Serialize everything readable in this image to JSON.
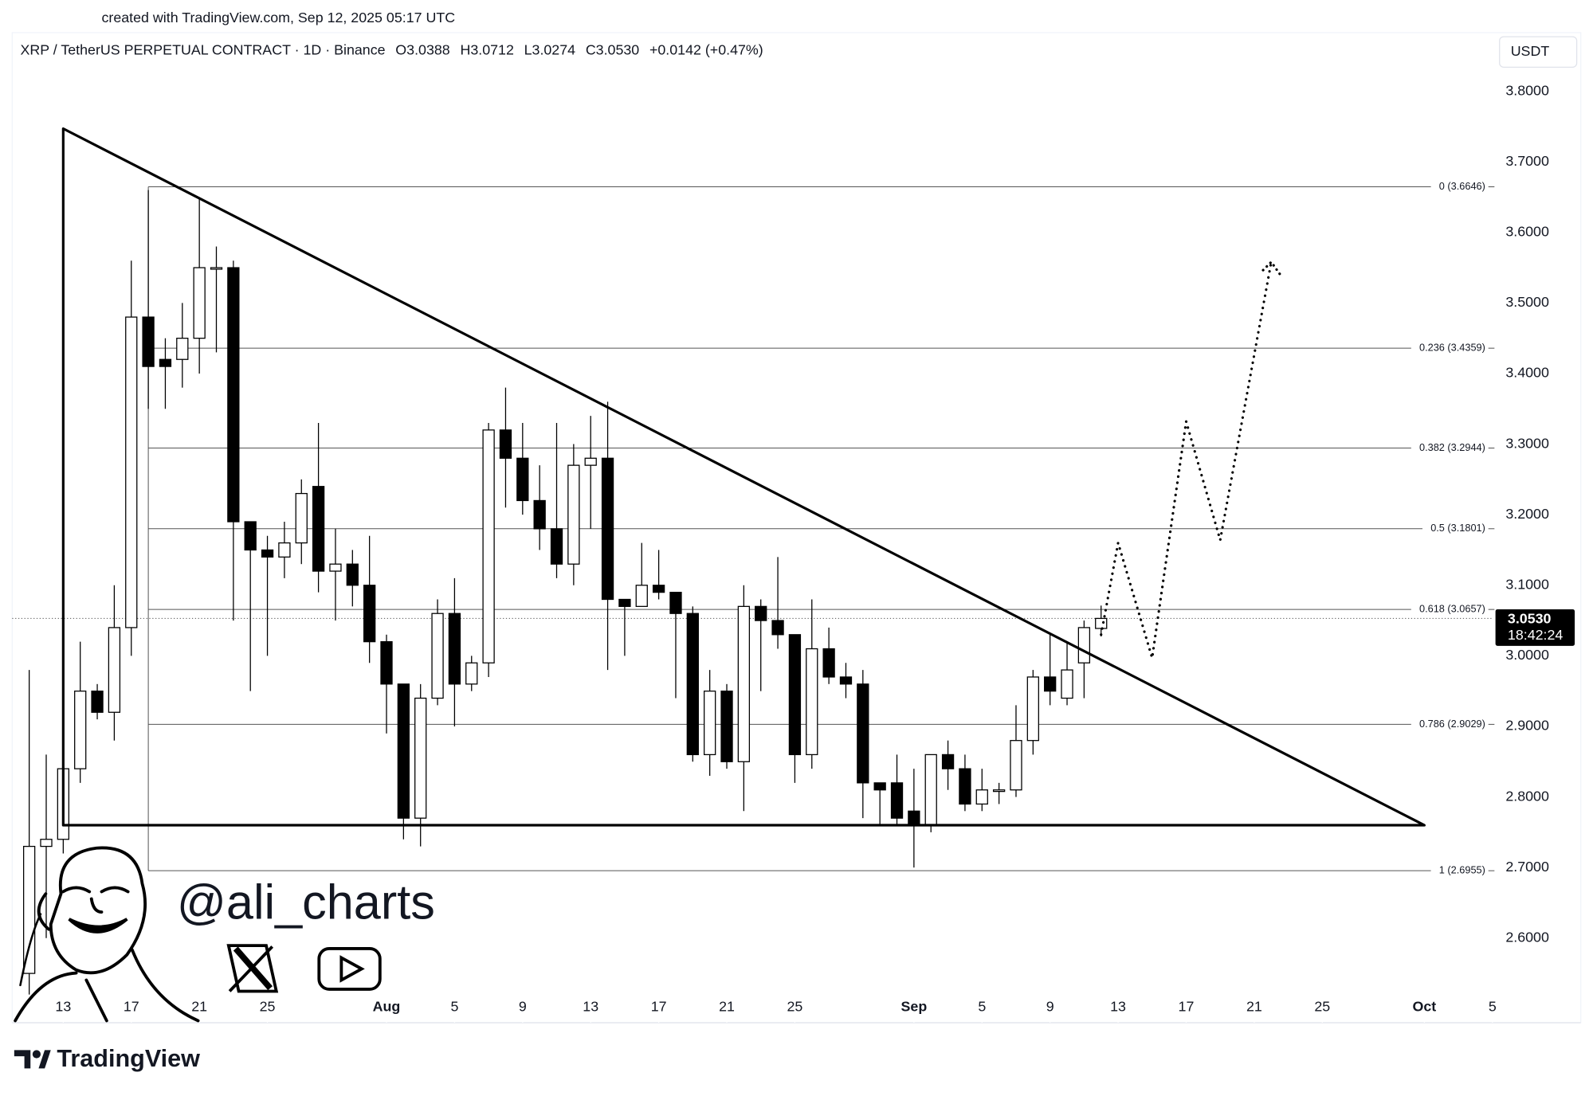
{
  "chart_data": {
    "type": "candlestick",
    "created_note": "created with TradingView.com, Sep 12, 2025 05:17 UTC",
    "symbol": "XRP / TetherUS PERPETUAL CONTRACT · 1D · Binance",
    "legend_ohlc": [
      "O3.0388",
      "H3.0712",
      "L3.0274",
      "C3.0530",
      "+0.0142 (+0.47%)"
    ],
    "currency": "USDT",
    "x": [
      "2025-07-11",
      "2025-07-12",
      "2025-07-13",
      "2025-07-14",
      "2025-07-15",
      "2025-07-16",
      "2025-07-17",
      "2025-07-18",
      "2025-07-19",
      "2025-07-20",
      "2025-07-21",
      "2025-07-22",
      "2025-07-23",
      "2025-07-24",
      "2025-07-25",
      "2025-07-26",
      "2025-07-27",
      "2025-07-28",
      "2025-07-29",
      "2025-07-30",
      "2025-07-31",
      "2025-08-01",
      "2025-08-02",
      "2025-08-03",
      "2025-08-04",
      "2025-08-05",
      "2025-08-06",
      "2025-08-07",
      "2025-08-08",
      "2025-08-09",
      "2025-08-10",
      "2025-08-11",
      "2025-08-12",
      "2025-08-13",
      "2025-08-14",
      "2025-08-15",
      "2025-08-16",
      "2025-08-17",
      "2025-08-18",
      "2025-08-19",
      "2025-08-20",
      "2025-08-21",
      "2025-08-22",
      "2025-08-23",
      "2025-08-24",
      "2025-08-25",
      "2025-08-26",
      "2025-08-27",
      "2025-08-28",
      "2025-08-29",
      "2025-08-30",
      "2025-08-31",
      "2025-09-01",
      "2025-09-02",
      "2025-09-03",
      "2025-09-04",
      "2025-09-05",
      "2025-09-06",
      "2025-09-07",
      "2025-09-08",
      "2025-09-09",
      "2025-09-10",
      "2025-09-11",
      "2025-09-12"
    ],
    "open": [
      2.55,
      2.73,
      2.74,
      2.84,
      2.95,
      2.92,
      3.04,
      3.48,
      3.42,
      3.42,
      3.45,
      3.55,
      3.55,
      3.19,
      3.15,
      3.14,
      3.16,
      3.24,
      3.12,
      3.13,
      3.1,
      3.02,
      2.96,
      2.77,
      2.94,
      3.06,
      2.96,
      2.99,
      3.32,
      3.28,
      3.22,
      3.18,
      3.13,
      3.27,
      3.28,
      3.08,
      3.07,
      3.1,
      3.09,
      3.06,
      2.86,
      2.95,
      2.85,
      3.07,
      3.05,
      3.03,
      2.86,
      3.01,
      2.97,
      2.96,
      2.82,
      2.82,
      2.78,
      2.76,
      2.86,
      2.84,
      2.79,
      2.81,
      2.81,
      2.88,
      2.97,
      2.94,
      2.99,
      3.0388
    ],
    "high": [
      2.98,
      2.86,
      2.87,
      3.02,
      2.96,
      3.1,
      3.56,
      3.66,
      3.45,
      3.5,
      3.65,
      3.58,
      3.56,
      3.19,
      3.17,
      3.19,
      3.25,
      3.33,
      3.18,
      3.15,
      3.17,
      3.03,
      2.96,
      2.96,
      3.08,
      3.11,
      3.0,
      3.33,
      3.38,
      3.33,
      3.27,
      3.33,
      3.3,
      3.34,
      3.36,
      3.08,
      3.16,
      3.15,
      3.09,
      3.07,
      2.98,
      2.96,
      3.1,
      3.08,
      3.14,
      3.03,
      3.08,
      3.04,
      2.99,
      2.98,
      2.82,
      2.86,
      2.84,
      2.86,
      2.88,
      2.86,
      2.84,
      2.82,
      2.93,
      2.98,
      3.03,
      3.02,
      3.05,
      3.0712
    ],
    "low": [
      2.52,
      2.6,
      2.72,
      2.82,
      2.91,
      2.88,
      3.0,
      3.35,
      3.35,
      3.38,
      3.4,
      3.43,
      3.05,
      2.95,
      3.0,
      3.11,
      3.13,
      3.09,
      3.05,
      3.07,
      2.99,
      2.89,
      2.74,
      2.73,
      2.93,
      2.9,
      2.95,
      2.97,
      3.21,
      3.2,
      3.15,
      3.11,
      3.1,
      3.18,
      2.98,
      3.0,
      3.07,
      3.08,
      2.94,
      2.85,
      2.83,
      2.84,
      2.78,
      2.95,
      3.01,
      2.82,
      2.84,
      2.96,
      2.94,
      2.77,
      2.76,
      2.76,
      2.7,
      2.75,
      2.81,
      2.78,
      2.78,
      2.79,
      2.8,
      2.86,
      2.93,
      2.93,
      2.94,
      3.0274
    ],
    "close": [
      2.73,
      2.74,
      2.84,
      2.95,
      2.92,
      3.04,
      3.48,
      3.41,
      3.41,
      3.45,
      3.55,
      3.55,
      3.19,
      3.15,
      3.14,
      3.16,
      3.23,
      3.12,
      3.13,
      3.1,
      3.02,
      2.96,
      2.77,
      2.94,
      3.06,
      2.96,
      2.99,
      3.32,
      3.28,
      3.22,
      3.18,
      3.13,
      3.27,
      3.28,
      3.08,
      3.07,
      3.1,
      3.09,
      3.06,
      2.86,
      2.95,
      2.85,
      3.07,
      3.05,
      3.03,
      2.86,
      3.01,
      2.97,
      2.96,
      2.82,
      2.81,
      2.77,
      2.76,
      2.86,
      2.84,
      2.79,
      2.81,
      2.81,
      2.88,
      2.97,
      2.95,
      2.98,
      3.04,
      3.053
    ],
    "up_color": "#ffffff",
    "down_color": "#000000",
    "xlim": [
      "2025-07-10",
      "2025-10-05"
    ],
    "xticks": [
      {
        "value": "2025-07-13",
        "label": "13"
      },
      {
        "value": "2025-07-17",
        "label": "17"
      },
      {
        "value": "2025-07-21",
        "label": "21"
      },
      {
        "value": "2025-07-25",
        "label": "25"
      },
      {
        "value": "2025-08-01",
        "label": "Aug"
      },
      {
        "value": "2025-08-05",
        "label": "5"
      },
      {
        "value": "2025-08-09",
        "label": "9"
      },
      {
        "value": "2025-08-13",
        "label": "13"
      },
      {
        "value": "2025-08-17",
        "label": "17"
      },
      {
        "value": "2025-08-21",
        "label": "21"
      },
      {
        "value": "2025-08-25",
        "label": "25"
      },
      {
        "value": "2025-09-01",
        "label": "Sep"
      },
      {
        "value": "2025-09-05",
        "label": "5"
      },
      {
        "value": "2025-09-09",
        "label": "9"
      },
      {
        "value": "2025-09-13",
        "label": "13"
      },
      {
        "value": "2025-09-17",
        "label": "17"
      },
      {
        "value": "2025-09-21",
        "label": "21"
      },
      {
        "value": "2025-09-25",
        "label": "25"
      },
      {
        "value": "2025-10-01",
        "label": "Oct"
      },
      {
        "value": "2025-10-05",
        "label": "5"
      }
    ],
    "ylim": [
      2.483,
      3.883
    ],
    "yticks": [
      {
        "value": 2.6,
        "label": "2.6000"
      },
      {
        "value": 2.7,
        "label": "2.7000"
      },
      {
        "value": 2.8,
        "label": "2.8000"
      },
      {
        "value": 2.9,
        "label": "2.9000"
      },
      {
        "value": 3.0,
        "label": "3.0000"
      },
      {
        "value": 3.1,
        "label": "3.1000"
      },
      {
        "value": 3.2,
        "label": "3.2000"
      },
      {
        "value": 3.3,
        "label": "3.3000"
      },
      {
        "value": 3.4,
        "label": "3.4000"
      },
      {
        "value": 3.5,
        "label": "3.5000"
      },
      {
        "value": 3.6,
        "label": "3.6000"
      },
      {
        "value": 3.7,
        "label": "3.7000"
      },
      {
        "value": 3.8,
        "label": "3.8000"
      }
    ],
    "last_price": {
      "value": 3.053,
      "label": "3.0530",
      "countdown": "18:42:24"
    },
    "fib_start": "2025-07-18",
    "fib_levels": [
      {
        "value": 3.6646,
        "label": "0 (3.6646)"
      },
      {
        "value": 3.4359,
        "label": "0.236 (3.4359)"
      },
      {
        "value": 3.2944,
        "label": "0.382 (3.2944)"
      },
      {
        "value": 3.1801,
        "label": "0.5 (3.1801)"
      },
      {
        "value": 3.0657,
        "label": "0.618 (3.0657)"
      },
      {
        "value": 2.9029,
        "label": "0.786 (2.9029)"
      },
      {
        "value": 2.6955,
        "label": "1 (2.6955)"
      }
    ],
    "triangle": [
      {
        "x": "2025-07-13",
        "y": 3.747
      },
      {
        "x": "2025-07-13",
        "y": 2.76
      },
      {
        "x": "2025-10-01",
        "y": 2.76
      }
    ],
    "projection": [
      {
        "x": "2025-09-12",
        "y": 3.03
      },
      {
        "x": "2025-09-13",
        "y": 3.16
      },
      {
        "x": "2025-09-15",
        "y": 2.997
      },
      {
        "x": "2025-09-17",
        "y": 3.332
      },
      {
        "x": "2025-09-19",
        "y": 3.164
      },
      {
        "x": "2025-09-22",
        "y": 3.558
      }
    ],
    "watermark": "@ali_charts",
    "brand": "TradingView"
  }
}
